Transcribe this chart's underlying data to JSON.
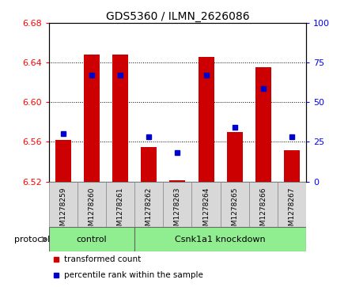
{
  "title": "GDS5360 / ILMN_2626086",
  "samples": [
    "GSM1278259",
    "GSM1278260",
    "GSM1278261",
    "GSM1278262",
    "GSM1278263",
    "GSM1278264",
    "GSM1278265",
    "GSM1278266",
    "GSM1278267"
  ],
  "bar_values": [
    6.562,
    6.648,
    6.648,
    6.555,
    6.521,
    6.646,
    6.57,
    6.635,
    6.552
  ],
  "blue_values": [
    6.568,
    6.627,
    6.627,
    6.565,
    6.549,
    6.627,
    6.575,
    6.614,
    6.565
  ],
  "ymin": 6.52,
  "ymax": 6.68,
  "y2min": 0,
  "y2max": 100,
  "yticks": [
    6.52,
    6.56,
    6.6,
    6.64,
    6.68
  ],
  "y2ticks": [
    0,
    25,
    50,
    75,
    100
  ],
  "bar_color": "#cc0000",
  "blue_color": "#0000cc",
  "control_label": "control",
  "treatment_label": "Csnk1a1 knockdown",
  "control_indices": [
    0,
    1,
    2
  ],
  "treatment_indices": [
    3,
    4,
    5,
    6,
    7,
    8
  ],
  "protocol_label": "protocol",
  "legend_bar": "transformed count",
  "legend_blue": "percentile rank within the sample",
  "green_color": "#90ee90",
  "ticklabel_bg": "#d8d8d8",
  "plot_bg": "#ffffff"
}
